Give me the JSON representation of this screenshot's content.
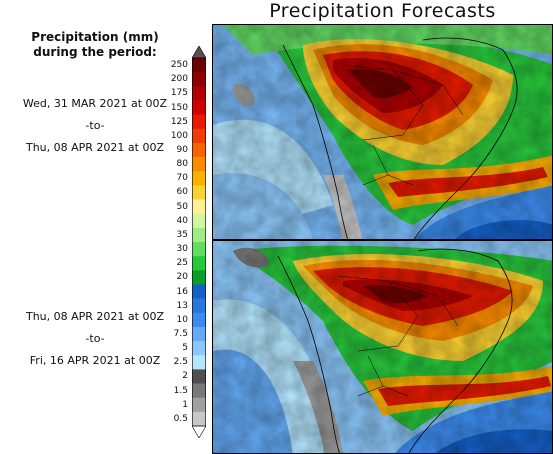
{
  "title": "Precipitation Forecasts",
  "legend": {
    "title_line1": "Precipitation (mm)",
    "title_line2": "during the period:",
    "ticks": [
      "250",
      "200",
      "175",
      "150",
      "125",
      "100",
      "90",
      "80",
      "70",
      "60",
      "50",
      "40",
      "35",
      "30",
      "25",
      "20",
      "16",
      "13",
      "10",
      "7.5",
      "5",
      "2.5",
      "2",
      "1.5",
      "1",
      "0.5"
    ],
    "colors": [
      "#6b0000",
      "#8c0000",
      "#b00000",
      "#d00000",
      "#e61a00",
      "#f03c00",
      "#f56400",
      "#fa8c00",
      "#fcb000",
      "#fcd232",
      "#fff096",
      "#d2f5a0",
      "#a0eb82",
      "#64dc64",
      "#28c83c",
      "#0aa028",
      "#1460c8",
      "#2878dc",
      "#3c8cf0",
      "#64aaf5",
      "#8cc8fa",
      "#b4e6ff",
      "#505050",
      "#787878",
      "#a0a0a0",
      "#c8c8c8"
    ],
    "top_arrow_color": "#5a5050",
    "bottom_arrow_color": "#ffffff"
  },
  "panels": [
    {
      "from": "Wed, 31 MAR 2021 at 00Z",
      "sep": "-to-",
      "to": "Thu, 08 APR 2021 at 00Z"
    },
    {
      "from": "Thu, 08 APR 2021 at 00Z",
      "sep": "-to-",
      "to": "Fri, 16 APR 2021 at 00Z"
    }
  ]
}
